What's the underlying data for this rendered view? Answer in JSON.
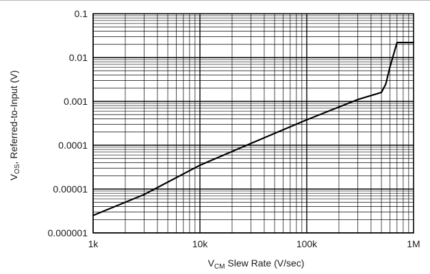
{
  "chart_data": {
    "type": "line",
    "x_scale": "log",
    "y_scale": "log",
    "xlim": [
      1000,
      1000000
    ],
    "ylim": [
      1e-06,
      0.1
    ],
    "x_ticks": [
      {
        "value": 1000,
        "label": "1k"
      },
      {
        "value": 10000,
        "label": "10k"
      },
      {
        "value": 100000,
        "label": "100k"
      },
      {
        "value": 1000000,
        "label": "1M"
      }
    ],
    "y_ticks": [
      {
        "value": 0.1,
        "label": "0.1"
      },
      {
        "value": 0.01,
        "label": "0.01"
      },
      {
        "value": 0.001,
        "label": "0.001"
      },
      {
        "value": 0.0001,
        "label": "0.0001"
      },
      {
        "value": 1e-05,
        "label": "0.00001"
      },
      {
        "value": 1e-06,
        "label": "0.000001"
      }
    ],
    "xlabel": {
      "main": "V",
      "sub": "CM",
      "rest": " Slew Rate (V/sec)"
    },
    "ylabel": {
      "main": "V",
      "sub": "OS",
      "rest": ", Referred-to-Input (V)"
    },
    "grid": true,
    "series": [
      {
        "color": "#000000",
        "x": [
          1000,
          3000,
          10000,
          30000,
          100000,
          300000,
          500000,
          550000,
          600000,
          700000,
          800000,
          1000000
        ],
        "y": [
          2.5e-06,
          7.5e-06,
          3.5e-05,
          0.00011,
          0.00038,
          0.0011,
          0.0016,
          0.0025,
          0.006,
          0.022,
          0.022,
          0.022
        ]
      }
    ]
  }
}
